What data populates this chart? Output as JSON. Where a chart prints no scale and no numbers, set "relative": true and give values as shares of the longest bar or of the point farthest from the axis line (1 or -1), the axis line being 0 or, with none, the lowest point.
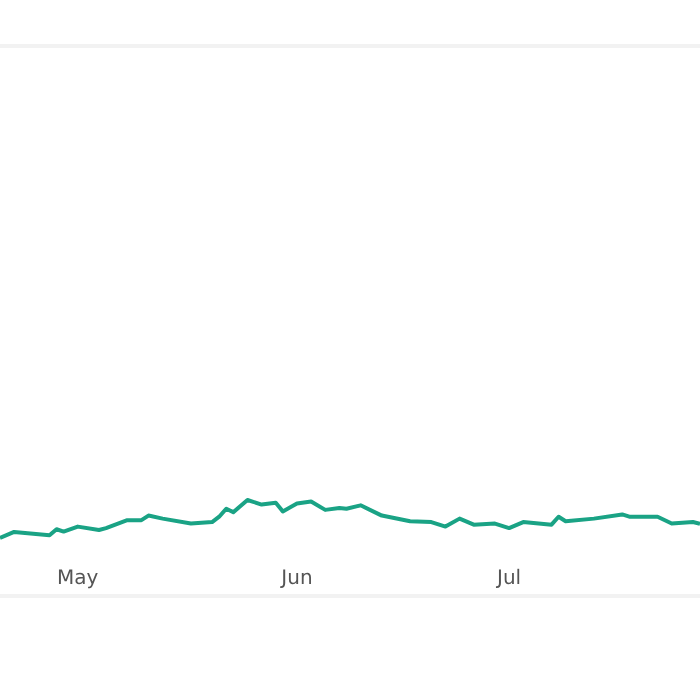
{
  "chart_data": {
    "type": "line",
    "relative": true,
    "x": [
      "--04-20",
      "--04-22",
      "--04-27",
      "--04-28",
      "--04-29",
      "--05-01",
      "--05-04",
      "--05-05",
      "--05-08",
      "--05-10",
      "--05-11",
      "--05-13",
      "--05-17",
      "--05-20",
      "--05-21",
      "--05-22",
      "--05-23",
      "--05-25",
      "--05-27",
      "--05-29",
      "--05-30",
      "--06-01",
      "--06-03",
      "--06-05",
      "--06-07",
      "--06-08",
      "--06-10",
      "--06-13",
      "--06-17",
      "--06-20",
      "--06-22",
      "--06-24",
      "--06-26",
      "--06-29",
      "--07-01",
      "--07-03",
      "--07-07",
      "--07-08",
      "--07-09",
      "--07-13",
      "--07-17",
      "--07-18",
      "--07-22",
      "--07-24",
      "--07-27",
      "--07-28"
    ],
    "series": [
      {
        "color": "#1aa385",
        "values": [
          0,
          0.16,
          0.07,
          0.23,
          0.17,
          0.3,
          0.21,
          0.26,
          0.47,
          0.47,
          0.59,
          0.51,
          0.38,
          0.42,
          0.56,
          0.77,
          0.68,
          1,
          0.88,
          0.93,
          0.7,
          0.91,
          0.96,
          0.74,
          0.79,
          0.77,
          0.86,
          0.59,
          0.44,
          0.42,
          0.3,
          0.51,
          0.35,
          0.38,
          0.26,
          0.42,
          0.35,
          0.56,
          0.44,
          0.51,
          0.62,
          0.56,
          0.56,
          0.38,
          0.42,
          0.37
        ]
      }
    ],
    "xlim": [
      "--04-20",
      "--07-28"
    ],
    "xticks": [
      {
        "value": "--05-01",
        "label": "May"
      },
      {
        "value": "--06-01",
        "label": "Jun"
      },
      {
        "value": "--07-01",
        "label": "Jul"
      }
    ]
  }
}
